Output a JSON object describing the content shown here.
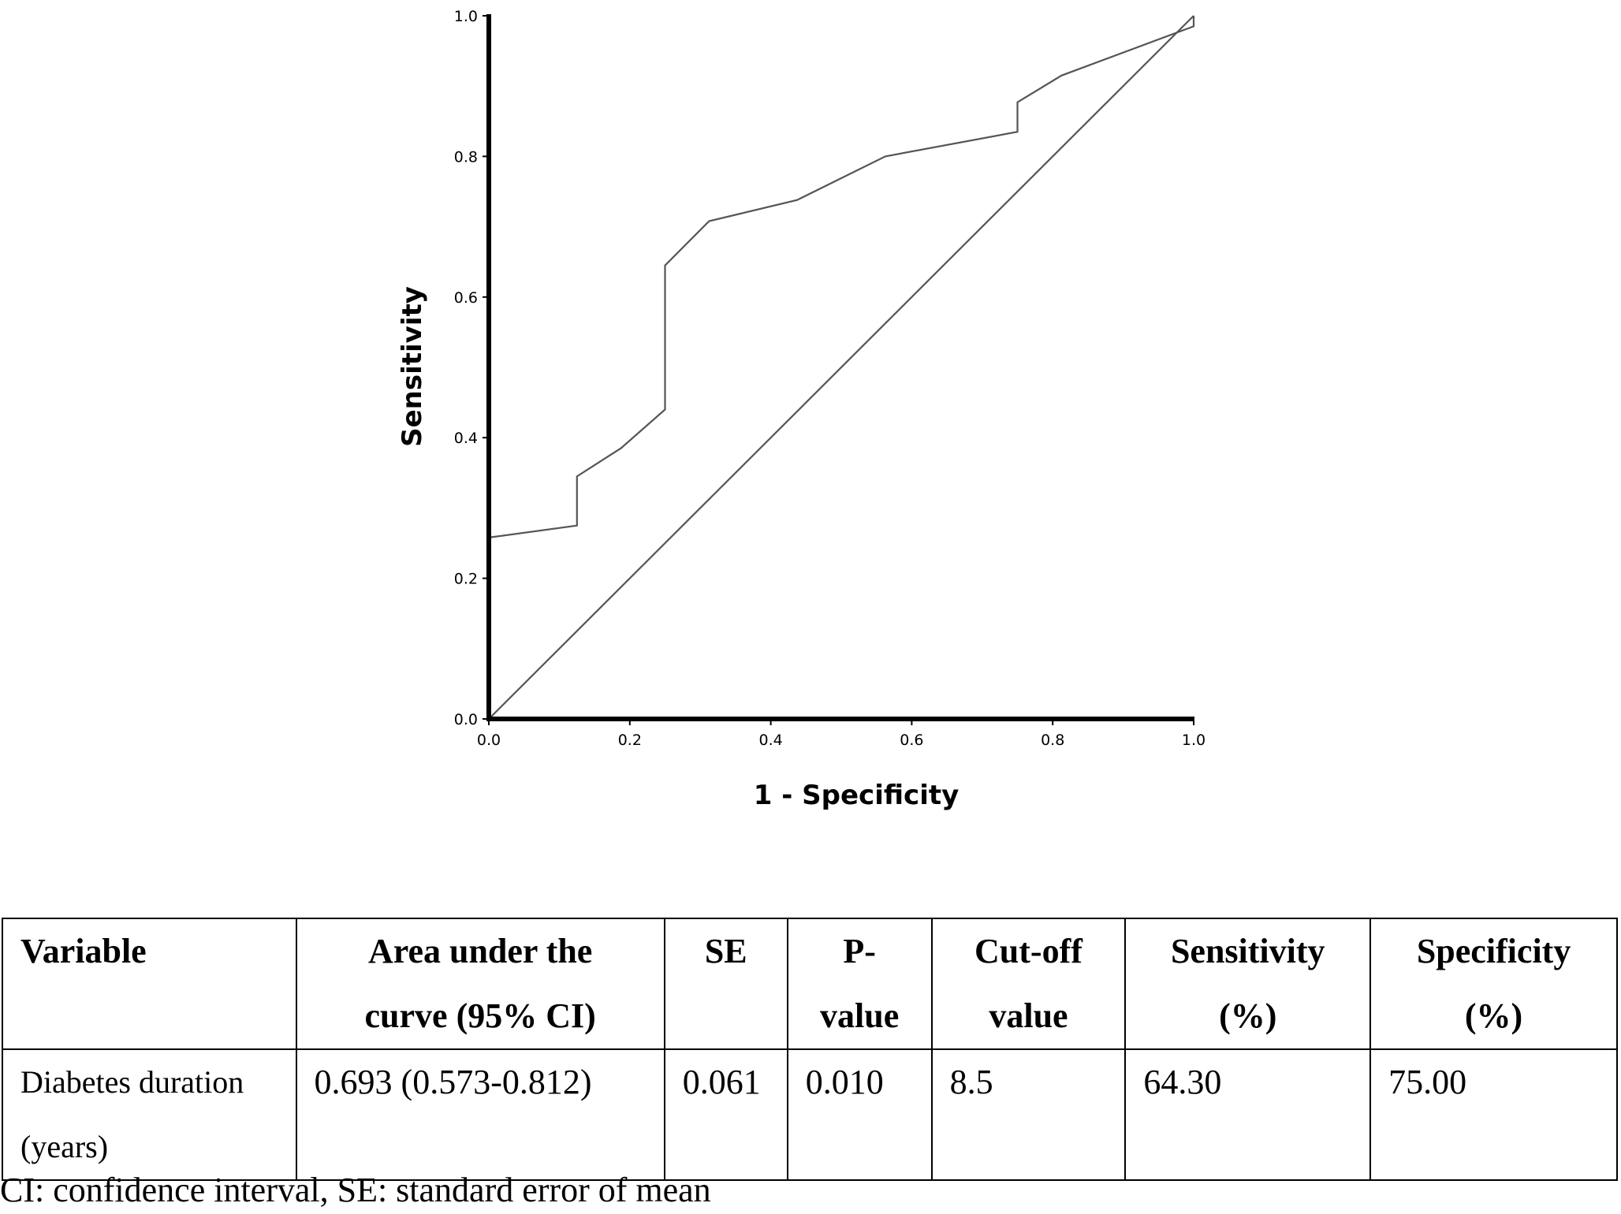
{
  "chart_data": {
    "type": "line",
    "title": "",
    "xlabel": "1 - Specificity",
    "ylabel": "Sensitivity",
    "xlim": [
      0.0,
      1.0
    ],
    "ylim": [
      0.0,
      1.0
    ],
    "xticks": [
      "0.0",
      "0.2",
      "0.4",
      "0.6",
      "0.8",
      "1.0"
    ],
    "yticks": [
      "0.0",
      "0.2",
      "0.4",
      "0.6",
      "0.8",
      "1.0"
    ],
    "grid": false,
    "legend": "none",
    "series": [
      {
        "role": "roc-curve",
        "color": "#555555",
        "x": [
          0.0,
          0.125,
          0.125,
          0.1875,
          0.25,
          0.25,
          0.3125,
          0.4375,
          0.5625,
          0.75,
          0.75,
          0.8125,
          1.0,
          1.0
        ],
        "y": [
          0.258,
          0.275,
          0.345,
          0.385,
          0.44,
          0.645,
          0.708,
          0.738,
          0.8,
          0.835,
          0.877,
          0.915,
          0.985,
          1.0
        ]
      },
      {
        "role": "reference-line",
        "color": "#555555",
        "x": [
          0.0,
          1.0
        ],
        "y": [
          0.0,
          1.0
        ]
      }
    ]
  },
  "table": {
    "headers": [
      [
        "Variable"
      ],
      [
        "Area under the",
        "curve (95% CI)"
      ],
      [
        "SE"
      ],
      [
        "P-",
        "value"
      ],
      [
        "Cut-off",
        "value"
      ],
      [
        "Sensitivity",
        "(%)"
      ],
      [
        "Specificity",
        "(%)"
      ]
    ],
    "rows": [
      [
        "Diabetes duration (years)",
        "0.693 (0.573-0.812)",
        "0.061",
        "0.010",
        "8.5",
        "64.30",
        "75.00"
      ]
    ]
  },
  "caption": "CI: confidence interval, SE: standard error of mean"
}
